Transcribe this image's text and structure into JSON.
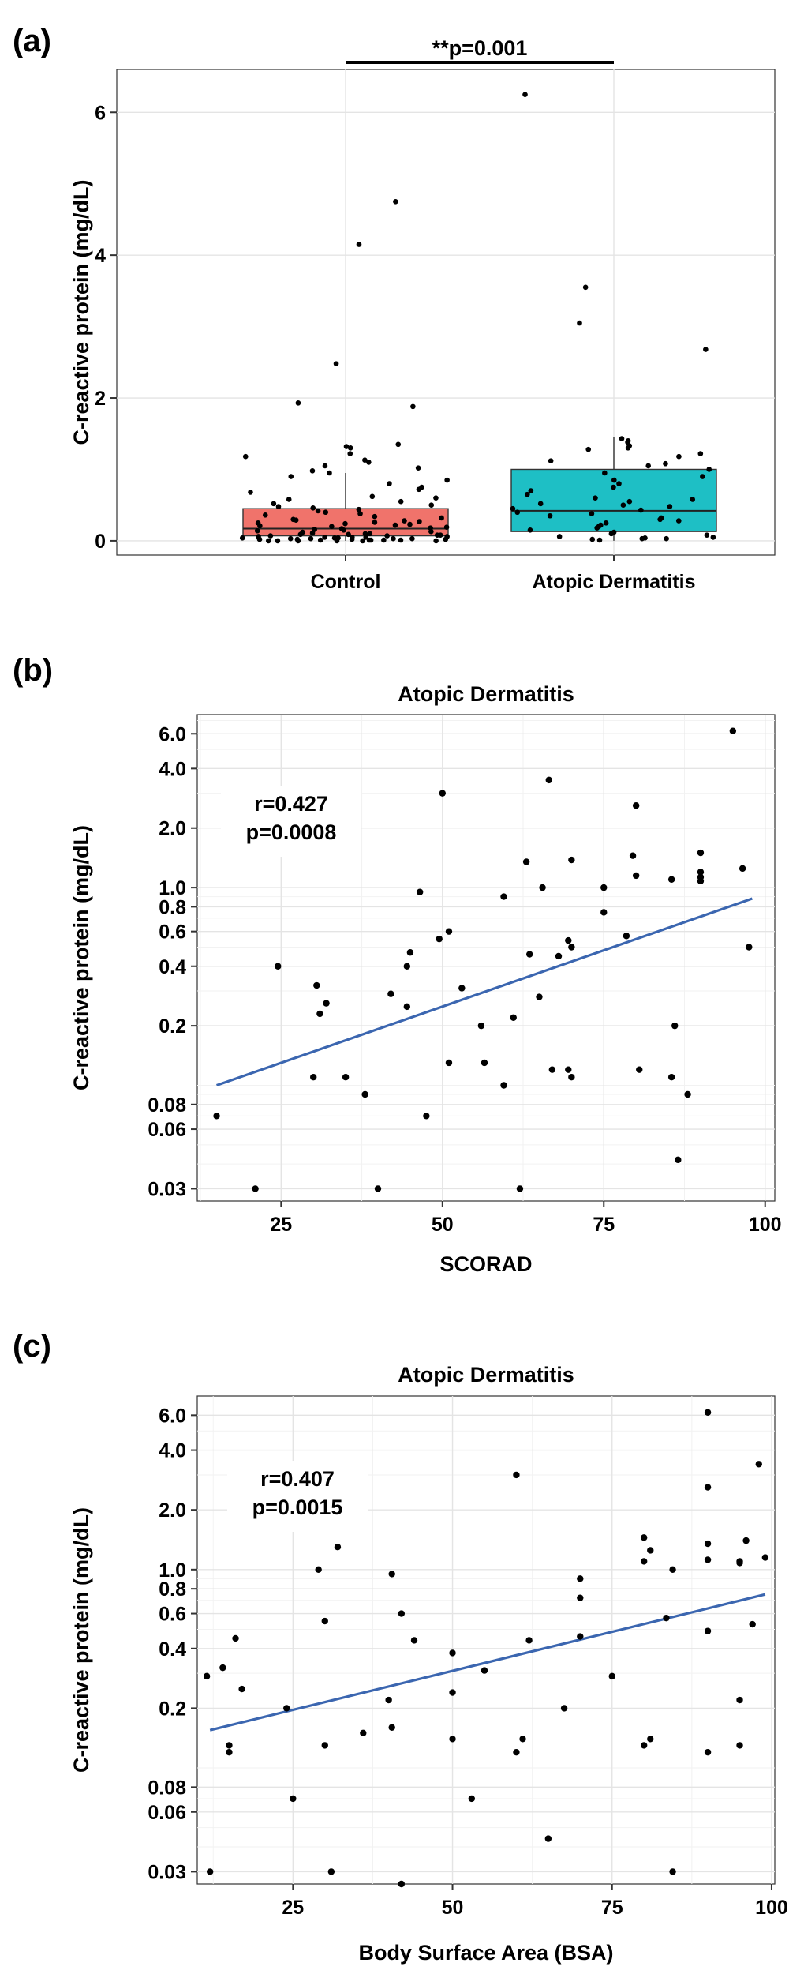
{
  "panels": {
    "a": {
      "letter": "(a)"
    },
    "b": {
      "letter": "(b)"
    },
    "c": {
      "letter": "(c)"
    }
  },
  "chart_data": [
    {
      "id": "a",
      "type": "box",
      "ylabel": "C-reactive protein (mg/dL)",
      "xlabel": "",
      "categories": [
        "Control",
        "Atopic Dermatitis"
      ],
      "ylim": [
        -0.2,
        6.6
      ],
      "yticks": [
        0,
        2,
        4,
        6
      ],
      "significance": "**p=0.001",
      "colors": {
        "Control": "#F0736B",
        "Atopic Dermatitis": "#1EBFC5"
      },
      "boxes": [
        {
          "category": "Control",
          "q1": 0.07,
          "median": 0.17,
          "q3": 0.45,
          "whisker_low": 0.0,
          "whisker_high": 0.95
        },
        {
          "category": "Atopic Dermatitis",
          "q1": 0.13,
          "median": 0.42,
          "q3": 1.0,
          "whisker_low": 0.0,
          "whisker_high": 1.45
        }
      ],
      "points": [
        {
          "category": "Control",
          "values": [
            4.75,
            4.15,
            2.48,
            1.93,
            1.88,
            1.35,
            1.32,
            1.3,
            1.22,
            1.18,
            1.13,
            1.1,
            1.05,
            1.02,
            0.98,
            0.95,
            0.9,
            0.85,
            0.8,
            0.75,
            0.72,
            0.68,
            0.62,
            0.6,
            0.58,
            0.55,
            0.52,
            0.5,
            0.48,
            0.46,
            0.44,
            0.42,
            0.4,
            0.38,
            0.36,
            0.34,
            0.32,
            0.3,
            0.29,
            0.28,
            0.27,
            0.26,
            0.25,
            0.24,
            0.23,
            0.22,
            0.21,
            0.2,
            0.19,
            0.18,
            0.17,
            0.16,
            0.15,
            0.14,
            0.13,
            0.12,
            0.11,
            0.1,
            0.1,
            0.09,
            0.09,
            0.08,
            0.08,
            0.07,
            0.07,
            0.06,
            0.06,
            0.05,
            0.05,
            0.05,
            0.04,
            0.04,
            0.04,
            0.03,
            0.03,
            0.03,
            0.03,
            0.02,
            0.02,
            0.02,
            0.02,
            0.01,
            0.01,
            0.01,
            0.01,
            0.01,
            0.0,
            0.0,
            0.0,
            0.0,
            0.0,
            0.0
          ]
        },
        {
          "category": "Atopic Dermatitis",
          "values": [
            6.25,
            3.55,
            3.05,
            2.68,
            1.43,
            1.4,
            1.38,
            1.33,
            1.3,
            1.28,
            1.22,
            1.18,
            1.12,
            1.08,
            1.05,
            1.0,
            0.95,
            0.9,
            0.85,
            0.8,
            0.75,
            0.7,
            0.65,
            0.6,
            0.58,
            0.55,
            0.52,
            0.5,
            0.48,
            0.45,
            0.43,
            0.4,
            0.38,
            0.35,
            0.32,
            0.3,
            0.28,
            0.25,
            0.22,
            0.2,
            0.18,
            0.15,
            0.12,
            0.1,
            0.08,
            0.06,
            0.05,
            0.04,
            0.03,
            0.03,
            0.02,
            0.01
          ]
        }
      ]
    },
    {
      "id": "b",
      "type": "scatter",
      "title": "Atopic Dermatitis",
      "xlabel": "SCORAD",
      "ylabel": "C-reactive protein (mg/dL)",
      "yscale": "log",
      "xlim": [
        12,
        101.5
      ],
      "ylim": [
        0.026,
        7.5
      ],
      "xticks": [
        25,
        50,
        75,
        100
      ],
      "yticks": [
        0.03,
        0.06,
        0.08,
        0.2,
        0.4,
        0.6,
        0.8,
        1.0,
        2.0,
        4.0,
        6.0
      ],
      "ytick_labels": [
        "0.03",
        "0.06",
        "0.08",
        "0.2",
        "0.4",
        "0.6",
        "0.8",
        "1.0",
        "2.0",
        "4.0",
        "6.0"
      ],
      "annotation": [
        "r=0.427",
        "p=0.0008"
      ],
      "trend": {
        "x": [
          15,
          98
        ],
        "y": [
          0.1,
          0.88
        ],
        "color": "#3B66B0"
      },
      "points": [
        {
          "x": 15,
          "y": 0.07
        },
        {
          "x": 21,
          "y": 0.03
        },
        {
          "x": 24.5,
          "y": 0.4
        },
        {
          "x": 30,
          "y": 0.11
        },
        {
          "x": 30.5,
          "y": 0.32
        },
        {
          "x": 31,
          "y": 0.23
        },
        {
          "x": 32,
          "y": 0.26
        },
        {
          "x": 35,
          "y": 0.11
        },
        {
          "x": 38,
          "y": 0.09
        },
        {
          "x": 40,
          "y": 0.03
        },
        {
          "x": 42,
          "y": 0.29
        },
        {
          "x": 44.5,
          "y": 0.25
        },
        {
          "x": 44.5,
          "y": 0.4
        },
        {
          "x": 45,
          "y": 0.47
        },
        {
          "x": 46.5,
          "y": 0.95
        },
        {
          "x": 47.5,
          "y": 0.07
        },
        {
          "x": 49.5,
          "y": 0.55
        },
        {
          "x": 50,
          "y": 3.0
        },
        {
          "x": 51,
          "y": 0.6
        },
        {
          "x": 51,
          "y": 0.13
        },
        {
          "x": 53,
          "y": 0.31
        },
        {
          "x": 56,
          "y": 0.2
        },
        {
          "x": 56.5,
          "y": 0.13
        },
        {
          "x": 59.5,
          "y": 0.1
        },
        {
          "x": 59.5,
          "y": 0.9
        },
        {
          "x": 61,
          "y": 0.22
        },
        {
          "x": 62,
          "y": 0.03
        },
        {
          "x": 63,
          "y": 1.35
        },
        {
          "x": 63.5,
          "y": 0.46
        },
        {
          "x": 65,
          "y": 0.28
        },
        {
          "x": 65.5,
          "y": 1.0
        },
        {
          "x": 66.5,
          "y": 3.5
        },
        {
          "x": 67,
          "y": 0.12
        },
        {
          "x": 68,
          "y": 0.45
        },
        {
          "x": 69.5,
          "y": 0.12
        },
        {
          "x": 69.5,
          "y": 0.54
        },
        {
          "x": 70,
          "y": 1.38
        },
        {
          "x": 70,
          "y": 0.11
        },
        {
          "x": 70,
          "y": 0.5
        },
        {
          "x": 75,
          "y": 1.0
        },
        {
          "x": 75,
          "y": 0.75
        },
        {
          "x": 78.5,
          "y": 0.57
        },
        {
          "x": 79.5,
          "y": 1.45
        },
        {
          "x": 80,
          "y": 2.6
        },
        {
          "x": 80,
          "y": 1.15
        },
        {
          "x": 80.5,
          "y": 0.12
        },
        {
          "x": 85.5,
          "y": 0.11
        },
        {
          "x": 85.5,
          "y": 1.1
        },
        {
          "x": 86,
          "y": 0.2
        },
        {
          "x": 86.5,
          "y": 0.042
        },
        {
          "x": 88,
          "y": 0.09
        },
        {
          "x": 90,
          "y": 1.5
        },
        {
          "x": 90,
          "y": 1.2
        },
        {
          "x": 90,
          "y": 1.13
        },
        {
          "x": 90,
          "y": 1.08
        },
        {
          "x": 95,
          "y": 6.2
        },
        {
          "x": 96.5,
          "y": 1.25
        },
        {
          "x": 97.5,
          "y": 0.5
        }
      ]
    },
    {
      "id": "c",
      "type": "scatter",
      "title": "Atopic Dermatitis",
      "xlabel": "Body Surface Area (BSA)",
      "ylabel": "C-reactive protein (mg/dL)",
      "yscale": "log",
      "xlim": [
        10,
        100.5
      ],
      "ylim": [
        0.026,
        7.5
      ],
      "xticks": [
        25,
        50,
        75,
        100
      ],
      "yticks": [
        0.03,
        0.06,
        0.08,
        0.2,
        0.4,
        0.6,
        0.8,
        1.0,
        2.0,
        4.0,
        6.0
      ],
      "ytick_labels": [
        "0.03",
        "0.06",
        "0.08",
        "0.2",
        "0.4",
        "0.6",
        "0.8",
        "1.0",
        "2.0",
        "4.0",
        "6.0"
      ],
      "annotation": [
        "r=0.407",
        "p=0.0015"
      ],
      "trend": {
        "x": [
          12,
          99
        ],
        "y": [
          0.155,
          0.75
        ],
        "color": "#3B66B0"
      },
      "points": [
        {
          "x": 11.5,
          "y": 0.29
        },
        {
          "x": 12,
          "y": 0.03
        },
        {
          "x": 14,
          "y": 0.32
        },
        {
          "x": 15,
          "y": 0.13
        },
        {
          "x": 15,
          "y": 0.12
        },
        {
          "x": 16,
          "y": 0.45
        },
        {
          "x": 17,
          "y": 0.25
        },
        {
          "x": 24,
          "y": 0.2
        },
        {
          "x": 25,
          "y": 0.07
        },
        {
          "x": 29,
          "y": 1.0
        },
        {
          "x": 30,
          "y": 0.55
        },
        {
          "x": 30,
          "y": 0.13
        },
        {
          "x": 31,
          "y": 0.03
        },
        {
          "x": 32,
          "y": 1.3
        },
        {
          "x": 36,
          "y": 0.15
        },
        {
          "x": 40,
          "y": 0.22
        },
        {
          "x": 40.5,
          "y": 0.95
        },
        {
          "x": 40.5,
          "y": 0.16
        },
        {
          "x": 42,
          "y": 0.6
        },
        {
          "x": 42,
          "y": 0.026
        },
        {
          "x": 44,
          "y": 0.44
        },
        {
          "x": 50,
          "y": 0.38
        },
        {
          "x": 50,
          "y": 0.24
        },
        {
          "x": 50,
          "y": 0.14
        },
        {
          "x": 53,
          "y": 0.07
        },
        {
          "x": 55,
          "y": 0.31
        },
        {
          "x": 60,
          "y": 3.0
        },
        {
          "x": 60,
          "y": 0.12
        },
        {
          "x": 61,
          "y": 0.14
        },
        {
          "x": 62,
          "y": 0.44
        },
        {
          "x": 65,
          "y": 0.044
        },
        {
          "x": 67.5,
          "y": 0.2
        },
        {
          "x": 70,
          "y": 0.9
        },
        {
          "x": 70,
          "y": 0.72
        },
        {
          "x": 70,
          "y": 0.46
        },
        {
          "x": 75,
          "y": 0.29
        },
        {
          "x": 80,
          "y": 1.45
        },
        {
          "x": 80,
          "y": 1.1
        },
        {
          "x": 80,
          "y": 0.13
        },
        {
          "x": 81,
          "y": 1.25
        },
        {
          "x": 81,
          "y": 0.14
        },
        {
          "x": 83.5,
          "y": 0.57
        },
        {
          "x": 84.5,
          "y": 1.0
        },
        {
          "x": 84.5,
          "y": 0.03
        },
        {
          "x": 90,
          "y": 6.2
        },
        {
          "x": 90,
          "y": 2.6
        },
        {
          "x": 90,
          "y": 1.35
        },
        {
          "x": 90,
          "y": 1.12
        },
        {
          "x": 90,
          "y": 0.49
        },
        {
          "x": 90,
          "y": 0.12
        },
        {
          "x": 95,
          "y": 1.1
        },
        {
          "x": 95,
          "y": 1.08
        },
        {
          "x": 95,
          "y": 0.22
        },
        {
          "x": 95,
          "y": 0.13
        },
        {
          "x": 96,
          "y": 1.4
        },
        {
          "x": 97,
          "y": 0.53
        },
        {
          "x": 98,
          "y": 3.4
        },
        {
          "x": 99,
          "y": 1.15
        }
      ]
    }
  ]
}
